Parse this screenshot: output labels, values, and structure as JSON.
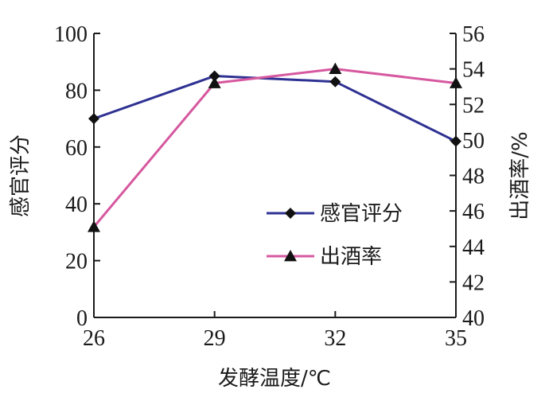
{
  "chart_data": {
    "type": "line",
    "xlabel": "发酵温度/℃",
    "x": [
      26,
      29,
      32,
      35
    ],
    "x_ticks": [
      "26",
      "29",
      "32",
      "35"
    ],
    "y_left": {
      "label": "感官评分",
      "range": [
        0,
        100
      ],
      "ticks": [
        "0",
        "20",
        "40",
        "60",
        "80",
        "100"
      ]
    },
    "y_right": {
      "label": "出酒率/%",
      "range": [
        40,
        56
      ],
      "ticks": [
        "40",
        "42",
        "44",
        "46",
        "48",
        "50",
        "52",
        "54",
        "56"
      ]
    },
    "series": [
      {
        "name": "感官评分",
        "axis": "left",
        "marker": "diamond",
        "color": "#2e3192",
        "values": [
          70,
          85,
          83,
          62
        ]
      },
      {
        "name": "出酒率",
        "axis": "right",
        "marker": "triangle",
        "color": "#d6589f",
        "values": [
          45.1,
          53.2,
          54.0,
          53.2
        ]
      }
    ],
    "legend_position": "center-right",
    "grid": false
  }
}
